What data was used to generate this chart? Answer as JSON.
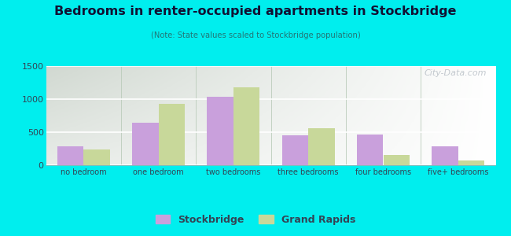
{
  "title": "Bedrooms in renter-occupied apartments in Stockbridge",
  "subtitle": "(Note: State values scaled to Stockbridge population)",
  "categories": [
    "no bedroom",
    "one bedroom",
    "two bedrooms",
    "three bedrooms",
    "four bedrooms",
    "five+ bedrooms"
  ],
  "stockbridge": [
    280,
    640,
    1040,
    450,
    460,
    290
  ],
  "grand_rapids": [
    240,
    930,
    1180,
    560,
    160,
    70
  ],
  "stockbridge_color": "#c9a0dc",
  "grand_rapids_color": "#c8d89a",
  "ylim": [
    0,
    1500
  ],
  "yticks": [
    0,
    500,
    1000,
    1500
  ],
  "background_color": "#00eeee",
  "title_color": "#111133",
  "subtitle_color": "#227777",
  "tick_color": "#334455",
  "bar_width": 0.35,
  "legend_stockbridge": "Stockbridge",
  "legend_grand_rapids": "Grand Rapids",
  "watermark": "City-Data.com"
}
